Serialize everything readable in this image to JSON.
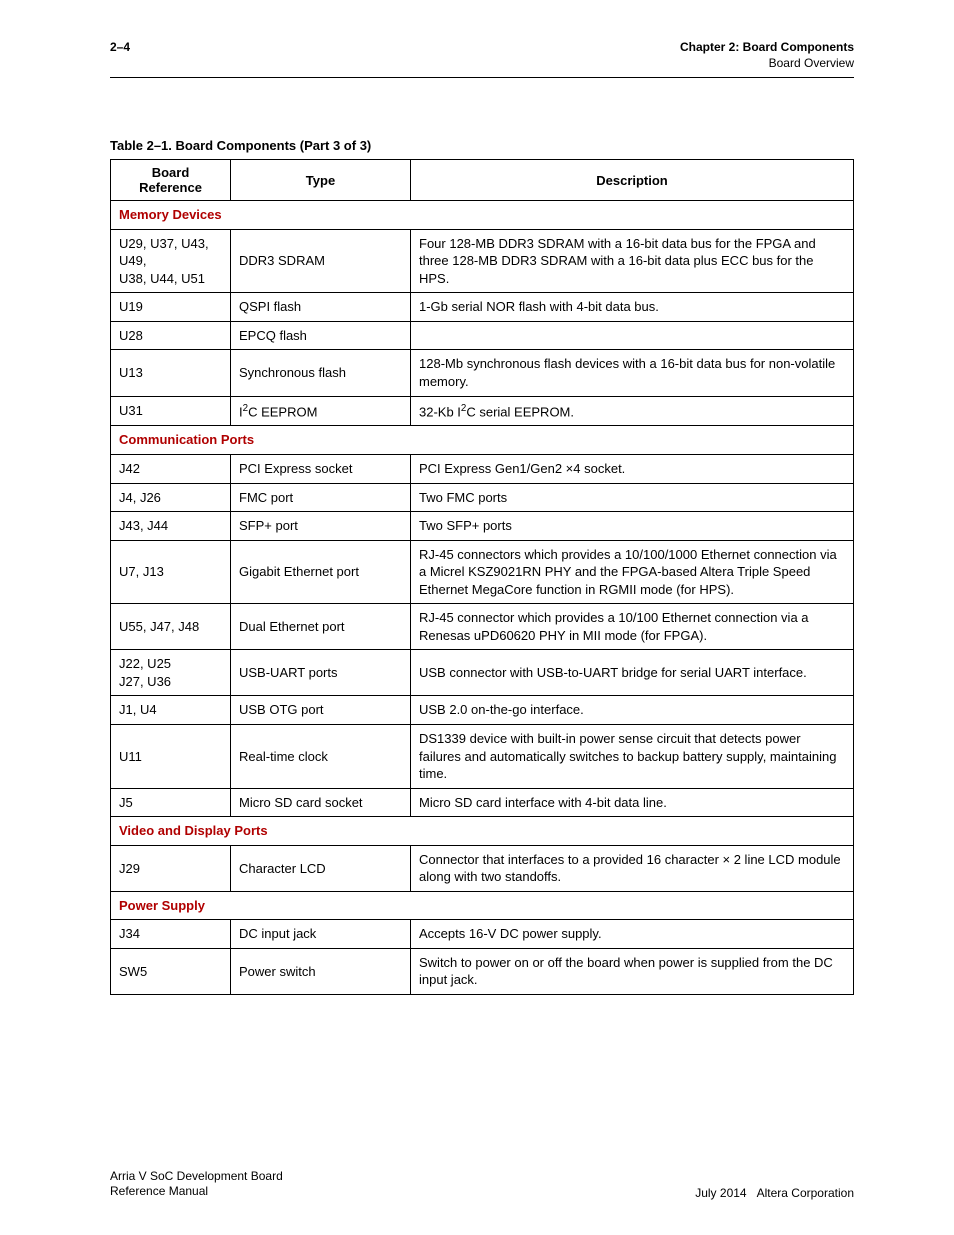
{
  "header": {
    "page_number": "2–4",
    "chapter_line": "Chapter 2: Board Components",
    "section_line": "Board Overview"
  },
  "table": {
    "caption": "Table 2–1. Board Components  (Part 3 of 3)",
    "columns": [
      "Board Reference",
      "Type",
      "Description"
    ],
    "sections": [
      {
        "title": "Memory Devices",
        "rows": [
          {
            "ref_html": "U29, U37, U43, U49,<br>U38, U44, U51",
            "type": "DDR3 SDRAM",
            "desc": "Four 128-MB DDR3 SDRAM with a 16-bit data bus for the FPGA and three 128-MB DDR3 SDRAM with a 16-bit data plus ECC bus for the HPS."
          },
          {
            "ref": "U19",
            "type": "QSPI flash",
            "desc": "1-Gb serial NOR flash with 4-bit data bus."
          },
          {
            "ref": "U28",
            "type": "EPCQ flash",
            "desc": ""
          },
          {
            "ref": "U13",
            "type": "Synchronous flash",
            "desc": "128-Mb synchronous flash devices with a 16-bit data bus for non-volatile memory."
          },
          {
            "ref": "U31",
            "type_html": "I<span class=\"sup\">2</span>C EEPROM",
            "desc_html": "32-Kb I<span class=\"sup\">2</span>C serial EEPROM."
          }
        ]
      },
      {
        "title": "Communication Ports",
        "rows": [
          {
            "ref": "J42",
            "type": "PCI Express socket",
            "desc": "PCI Express Gen1/Gen2 ×4 socket."
          },
          {
            "ref": "J4, J26",
            "type": "FMC port",
            "desc": "Two FMC ports"
          },
          {
            "ref": "J43, J44",
            "type": "SFP+ port",
            "desc": "Two SFP+ ports"
          },
          {
            "ref": "U7, J13",
            "type": "Gigabit Ethernet port",
            "desc": "RJ-45 connectors which provides a 10/100/1000 Ethernet connection via a Micrel KSZ9021RN PHY and the FPGA-based Altera Triple Speed Ethernet MegaCore function in RGMII mode (for HPS)."
          },
          {
            "ref": "U55, J47, J48",
            "type": "Dual Ethernet port",
            "desc": "RJ-45 connector which provides a 10/100 Ethernet connection via a Renesas uPD60620 PHY in MII mode (for FPGA)."
          },
          {
            "ref_html": "J22, U25<br>J27, U36",
            "type": "USB-UART ports",
            "desc": "USB connector with USB-to-UART bridge for serial UART interface."
          },
          {
            "ref": "J1, U4",
            "type": "USB OTG port",
            "desc": "USB 2.0 on-the-go interface."
          },
          {
            "ref": "U11",
            "type": "Real-time clock",
            "desc": "DS1339 device with built-in power sense circuit that detects power failures and automatically switches to backup battery supply, maintaining time."
          },
          {
            "ref": "J5",
            "type": "Micro SD card socket",
            "desc": "Micro SD card interface with 4-bit data line."
          }
        ]
      },
      {
        "title": "Video and Display Ports",
        "rows": [
          {
            "ref": "J29",
            "type": "Character LCD",
            "desc": "Connector that interfaces to a provided 16 character × 2 line LCD module along with two standoffs."
          }
        ]
      },
      {
        "title": "Power Supply",
        "rows": [
          {
            "ref": "J34",
            "type": "DC input jack",
            "desc": "Accepts 16-V DC power supply."
          },
          {
            "ref": "SW5",
            "type": "Power switch",
            "desc": "Switch to power on or off the board when power is supplied from the DC input jack."
          }
        ]
      }
    ]
  },
  "footer": {
    "left_line1": "Arria V SoC Development Board",
    "left_line2": "Reference Manual",
    "right_date": "July 2014",
    "right_corp": "Altera Corporation"
  }
}
